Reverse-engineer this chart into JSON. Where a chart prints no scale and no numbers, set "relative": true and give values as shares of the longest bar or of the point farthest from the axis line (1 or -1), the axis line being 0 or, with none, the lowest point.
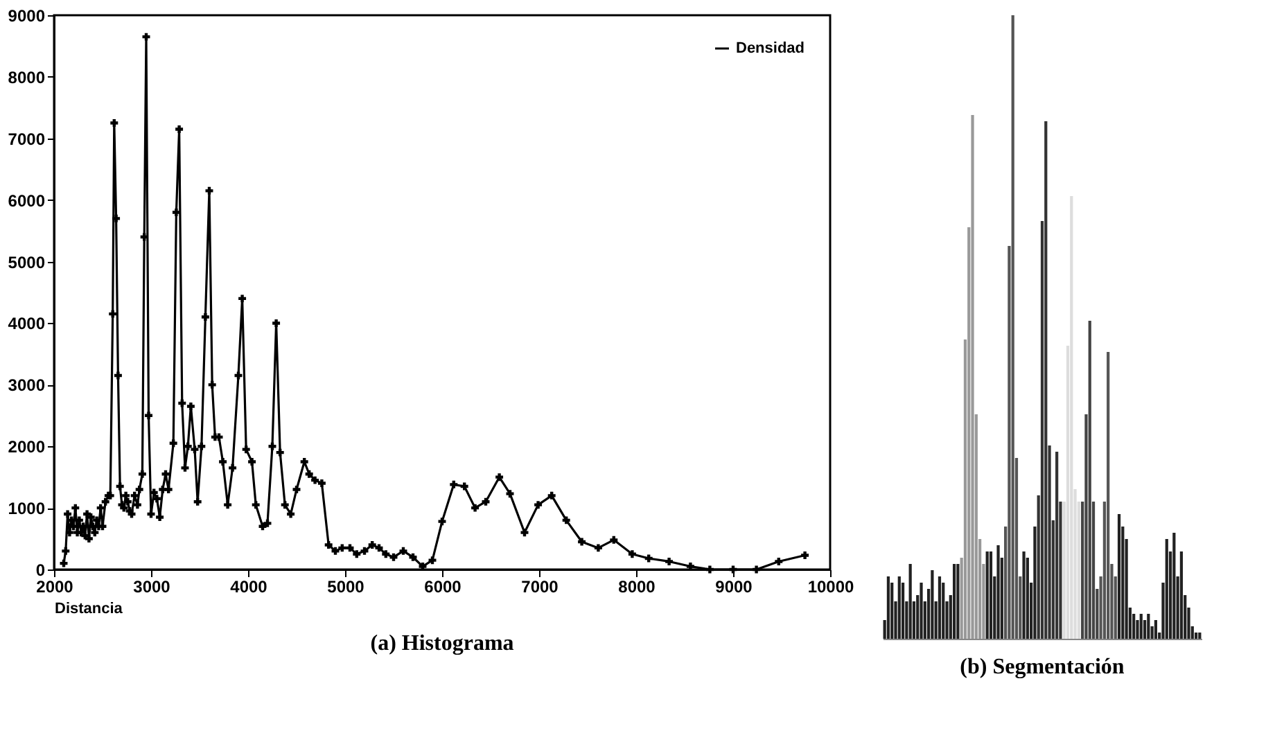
{
  "chart_data": [
    {
      "type": "line",
      "title": "(a) Histograma",
      "xlabel": "Distancia",
      "legend": "top right",
      "marker": "cross",
      "x": [
        2100,
        2120,
        2140,
        2160,
        2180,
        2200,
        2220,
        2240,
        2260,
        2280,
        2300,
        2320,
        2340,
        2360,
        2380,
        2400,
        2420,
        2440,
        2460,
        2480,
        2500,
        2530,
        2560,
        2580,
        2605,
        2620,
        2640,
        2660,
        2680,
        2700,
        2720,
        2740,
        2760,
        2780,
        2800,
        2830,
        2860,
        2880,
        2910,
        2930,
        2950,
        2975,
        3000,
        3030,
        3060,
        3090,
        3120,
        3150,
        3180,
        3230,
        3260,
        3290,
        3320,
        3350,
        3380,
        3410,
        3450,
        3480,
        3520,
        3560,
        3600,
        3630,
        3660,
        3700,
        3740,
        3790,
        3840,
        3900,
        3940,
        3980,
        4040,
        4080,
        4150,
        4200,
        4250,
        4290,
        4330,
        4380,
        4440,
        4500,
        4580,
        4630,
        4690,
        4760,
        4830,
        4900,
        4970,
        5050,
        5120,
        5200,
        5280,
        5350,
        5420,
        5500,
        5600,
        5700,
        5800,
        5900,
        6000,
        6120,
        6230,
        6340,
        6450,
        6590,
        6700,
        6850,
        6990,
        7130,
        7280,
        7440,
        7610,
        7770,
        7960,
        8130,
        8340,
        8560,
        8760,
        9000,
        9240,
        9470,
        9740
      ],
      "series": [
        {
          "name": "Densidad",
          "color": "#000000",
          "values": [
            100,
            300,
            900,
            600,
            800,
            700,
            1000,
            600,
            800,
            600,
            700,
            550,
            900,
            500,
            850,
            700,
            600,
            800,
            700,
            1000,
            700,
            1100,
            1200,
            1200,
            4150,
            7250,
            5700,
            3150,
            1350,
            1050,
            1000,
            1200,
            1100,
            950,
            900,
            1200,
            1050,
            1300,
            1550,
            5400,
            8650,
            2500,
            900,
            1250,
            1150,
            850,
            1300,
            1550,
            1300,
            2050,
            5800,
            7150,
            2700,
            1650,
            2000,
            2650,
            1950,
            1100,
            2000,
            4100,
            6150,
            3000,
            2150,
            2150,
            1750,
            1050,
            1650,
            3150,
            4400,
            1950,
            1750,
            1050,
            700,
            750,
            2000,
            4000,
            1900,
            1050,
            900,
            1300,
            1750,
            1550,
            1450,
            1400,
            400,
            300,
            350,
            350,
            250,
            300,
            400,
            350,
            250,
            200,
            300,
            200,
            50,
            150,
            780,
            1380,
            1350,
            1000,
            1100,
            1500,
            1230,
            600,
            1050,
            1200,
            800,
            450,
            350,
            480,
            250,
            180,
            130,
            50,
            0,
            0,
            0,
            130,
            230
          ]
        }
      ],
      "xlim": [
        2000,
        10000
      ],
      "xticks": [
        2000,
        3000,
        4000,
        5000,
        6000,
        7000,
        8000,
        9000,
        10000
      ],
      "ylim": [
        0,
        9000
      ],
      "yticks": [
        0,
        1000,
        2000,
        3000,
        4000,
        5000,
        6000,
        7000,
        8000,
        9000
      ]
    },
    {
      "type": "bar",
      "title": "(b) Segmentación",
      "relative": true,
      "categories": [
        null,
        null,
        null,
        null,
        null,
        null,
        null,
        null,
        null,
        null,
        null,
        null,
        null,
        null,
        null,
        null,
        null,
        null,
        null,
        null,
        null,
        null,
        null,
        null,
        null,
        null,
        null,
        null,
        null,
        null,
        null,
        null,
        null,
        null,
        null,
        null,
        null,
        null,
        null,
        null,
        null,
        null,
        null,
        null,
        null,
        null,
        null,
        null,
        null,
        null,
        null,
        null,
        null,
        null,
        null,
        null,
        null,
        null,
        null,
        null,
        null,
        null,
        null,
        null,
        null,
        null,
        null,
        null,
        null,
        null,
        null,
        null,
        null,
        null,
        null,
        null,
        null,
        null,
        null,
        null,
        null,
        null,
        null,
        null,
        null,
        null,
        null
      ],
      "values": [
        0.03,
        0.1,
        0.09,
        0.06,
        0.1,
        0.09,
        0.06,
        0.12,
        0.06,
        0.07,
        0.09,
        0.06,
        0.08,
        0.11,
        0.06,
        0.1,
        0.09,
        0.06,
        0.07,
        0.12,
        0.12,
        0.13,
        0.48,
        0.66,
        0.84,
        0.36,
        0.16,
        0.12,
        0.14,
        0.14,
        0.1,
        0.15,
        0.13,
        0.18,
        0.63,
        1,
        0.29,
        0.1,
        0.14,
        0.13,
        0.09,
        0.18,
        0.23,
        0.67,
        0.83,
        0.31,
        0.19,
        0.3,
        0.22,
        0.22,
        0.47,
        0.71,
        0.24,
        0.22,
        0.22,
        0.36,
        0.51,
        0.22,
        0.08,
        0.1,
        0.22,
        0.46,
        0.12,
        0.1,
        0.2,
        0.18,
        0.16,
        0.05,
        0.04,
        0.03,
        0.04,
        0.03,
        0.04,
        0.02,
        0.03,
        0.01,
        0.09,
        0.16,
        0.14,
        0.17,
        0.1,
        0.14,
        0.07,
        0.05,
        0.02,
        0.01,
        0.01
      ],
      "colors": [
        "#222222",
        "#222222",
        "#222222",
        "#222222",
        "#222222",
        "#222222",
        "#222222",
        "#222222",
        "#222222",
        "#222222",
        "#222222",
        "#222222",
        "#222222",
        "#222222",
        "#222222",
        "#222222",
        "#222222",
        "#222222",
        "#222222",
        "#222222",
        "#222222",
        "#999999",
        "#999999",
        "#999999",
        "#999999",
        "#999999",
        "#999999",
        "#999999",
        "#222222",
        "#222222",
        "#222222",
        "#222222",
        "#222222",
        "#555555",
        "#555555",
        "#555555",
        "#555555",
        "#555555",
        "#222222",
        "#222222",
        "#222222",
        "#222222",
        "#333333",
        "#333333",
        "#333333",
        "#333333",
        "#333333",
        "#333333",
        "#333333",
        "#dddddd",
        "#dddddd",
        "#dddddd",
        "#dddddd",
        "#dddddd",
        "#444444",
        "#444444",
        "#444444",
        "#444444",
        "#444444",
        "#555555",
        "#555555",
        "#555555",
        "#555555",
        "#555555",
        "#222222",
        "#222222",
        "#222222",
        "#222222",
        "#222222",
        "#222222",
        "#222222",
        "#222222",
        "#222222",
        "#222222",
        "#222222",
        "#222222",
        "#222222",
        "#222222",
        "#222222",
        "#222222",
        "#222222",
        "#222222",
        "#222222",
        "#222222",
        "#222222",
        "#222222",
        "#222222"
      ]
    }
  ]
}
